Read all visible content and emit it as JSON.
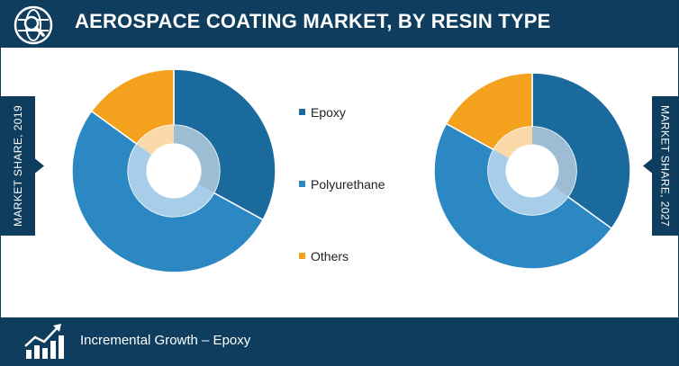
{
  "header": {
    "title": "AEROSPACE COATING MARKET, BY RESIN TYPE",
    "icon": "globe-search-icon"
  },
  "footer": {
    "text": "Incremental Growth – Epoxy",
    "icon": "growth-chart-icon"
  },
  "colors": {
    "navy": "#0e3d5d",
    "epoxy": "#1b6a9d",
    "polyurethane": "#2b88c2",
    "others": "#f4a11e",
    "inner_epoxy": "#9dbdd5",
    "inner_polyurethane": "#a7cde8",
    "inner_others": "#fad9a8"
  },
  "chart_data": [
    {
      "type": "pie",
      "side_label": "MARKET SHARE, 2019",
      "categories": [
        "Epoxy",
        "Polyurethane",
        "Others"
      ],
      "values": [
        33,
        52,
        15
      ]
    },
    {
      "type": "pie",
      "side_label": "MARKET SHARE, 2027",
      "categories": [
        "Epoxy",
        "Polyurethane",
        "Others"
      ],
      "values": [
        35,
        48,
        17
      ]
    }
  ],
  "legend": {
    "placement": "center",
    "items": [
      {
        "label": "Epoxy"
      },
      {
        "label": "Polyurethane"
      },
      {
        "label": "Others"
      }
    ]
  }
}
